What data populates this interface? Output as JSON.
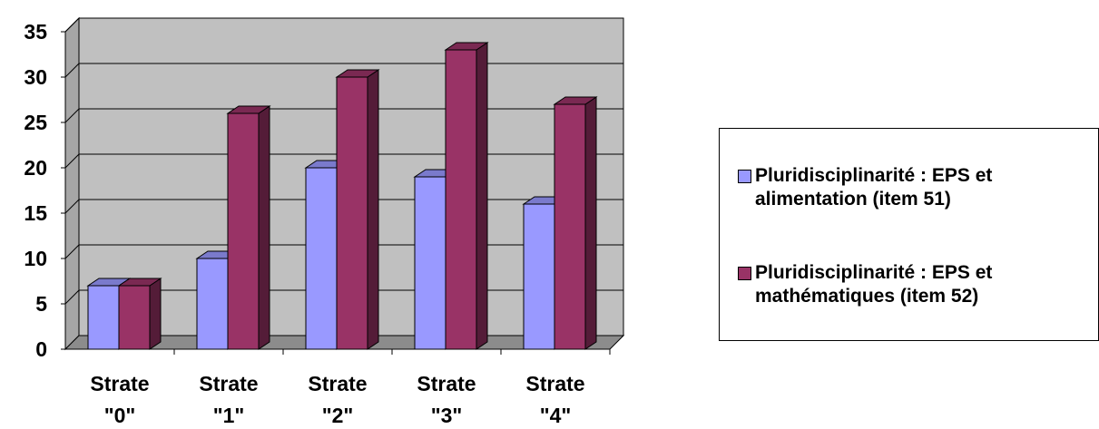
{
  "chart_data": {
    "type": "bar",
    "style": "3d-clustered-column",
    "categories": [
      "Strate \"0\"",
      "Strate \"1\"",
      "Strate \"2\"",
      "Strate \"3\"",
      "Strate \"4\""
    ],
    "series": [
      {
        "name": "Pluridisciplinarité : EPS et alimentation (item 51)",
        "color": "#9999ff",
        "values": [
          7,
          10,
          20,
          19,
          16
        ]
      },
      {
        "name": "Pluridisciplinarité : EPS et mathématiques (item 52)",
        "color": "#993366",
        "values": [
          7,
          26,
          30,
          33,
          27
        ]
      }
    ],
    "ylim": [
      0,
      35
    ],
    "yticks": [
      "0",
      "5",
      "10",
      "15",
      "20",
      "25",
      "30",
      "35"
    ],
    "title": "",
    "xlabel": "",
    "ylabel": "",
    "grid": true,
    "wall_color": "#c0c0c0",
    "legend_position": "right"
  }
}
